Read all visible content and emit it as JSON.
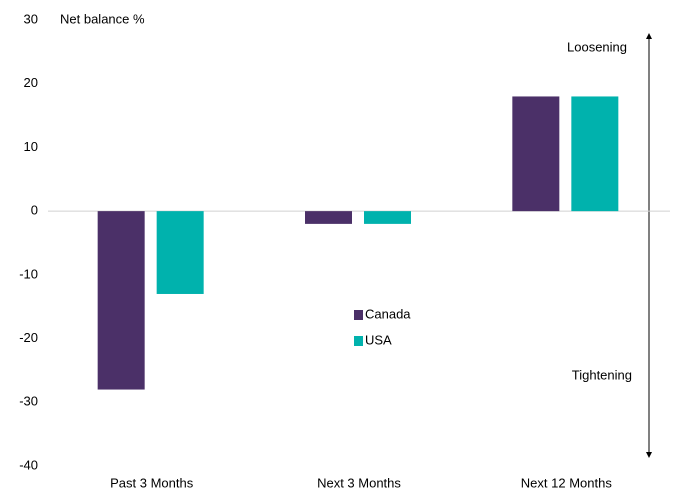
{
  "chart_data": {
    "type": "bar",
    "y_label": "Net balance %",
    "annotations": [
      "Loosening",
      "Tightening"
    ],
    "categories": [
      "Past 3 Months",
      "Next 3 Months",
      "Next 12 Months"
    ],
    "series": [
      {
        "name": "Canada",
        "color": "#4b3068",
        "values": [
          -28,
          -2,
          18
        ]
      },
      {
        "name": "USA",
        "color": "#00b2ad",
        "values": [
          -13,
          -2,
          18
        ]
      }
    ],
    "ylim": [
      -40,
      30
    ],
    "yticks": [
      -40,
      -30,
      -20,
      -10,
      0,
      10,
      20,
      30
    ]
  }
}
